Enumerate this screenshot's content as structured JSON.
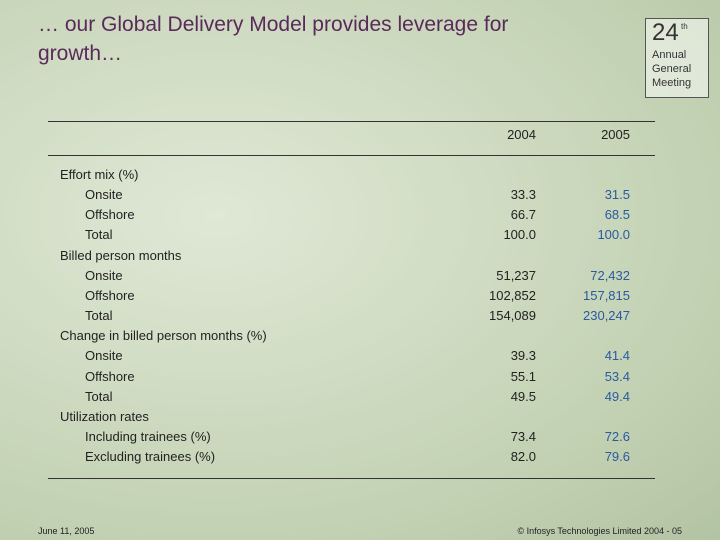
{
  "header": {
    "title": "… our Global Delivery Model provides leverage for growth…",
    "logo": {
      "number": "24",
      "suffix": "th",
      "lines": [
        "Annual",
        "General",
        "Meeting"
      ]
    }
  },
  "table": {
    "columns": [
      "2004",
      "2005"
    ],
    "sections": [
      {
        "label": "Effort mix (%)",
        "rows": [
          {
            "label": "Onsite",
            "values": [
              "33.3",
              "31.5"
            ]
          },
          {
            "label": "Offshore",
            "values": [
              "66.7",
              "68.5"
            ]
          },
          {
            "label": "Total",
            "values": [
              "100.0",
              "100.0"
            ]
          }
        ]
      },
      {
        "label": "Billed person months",
        "rows": [
          {
            "label": "Onsite",
            "values": [
              "51,237",
              "72,432"
            ]
          },
          {
            "label": "Offshore",
            "values": [
              "102,852",
              "157,815"
            ]
          },
          {
            "label": "Total",
            "values": [
              "154,089",
              "230,247"
            ]
          }
        ]
      },
      {
        "label": "Change in billed person months (%)",
        "rows": [
          {
            "label": "Onsite",
            "values": [
              "39.3",
              "41.4"
            ]
          },
          {
            "label": "Offshore",
            "values": [
              "55.1",
              "53.4"
            ]
          },
          {
            "label": "Total",
            "values": [
              "49.5",
              "49.4"
            ]
          }
        ]
      },
      {
        "label": "Utilization rates",
        "rows": [
          {
            "label": "Including trainees (%)",
            "values": [
              "73.4",
              "72.6"
            ]
          },
          {
            "label": "Excluding trainees (%)",
            "values": [
              "82.0",
              "79.6"
            ]
          }
        ]
      }
    ]
  },
  "footer": {
    "date": "June 11, 2005",
    "copyright": "© Infosys Technologies Limited 2004 - 05"
  }
}
